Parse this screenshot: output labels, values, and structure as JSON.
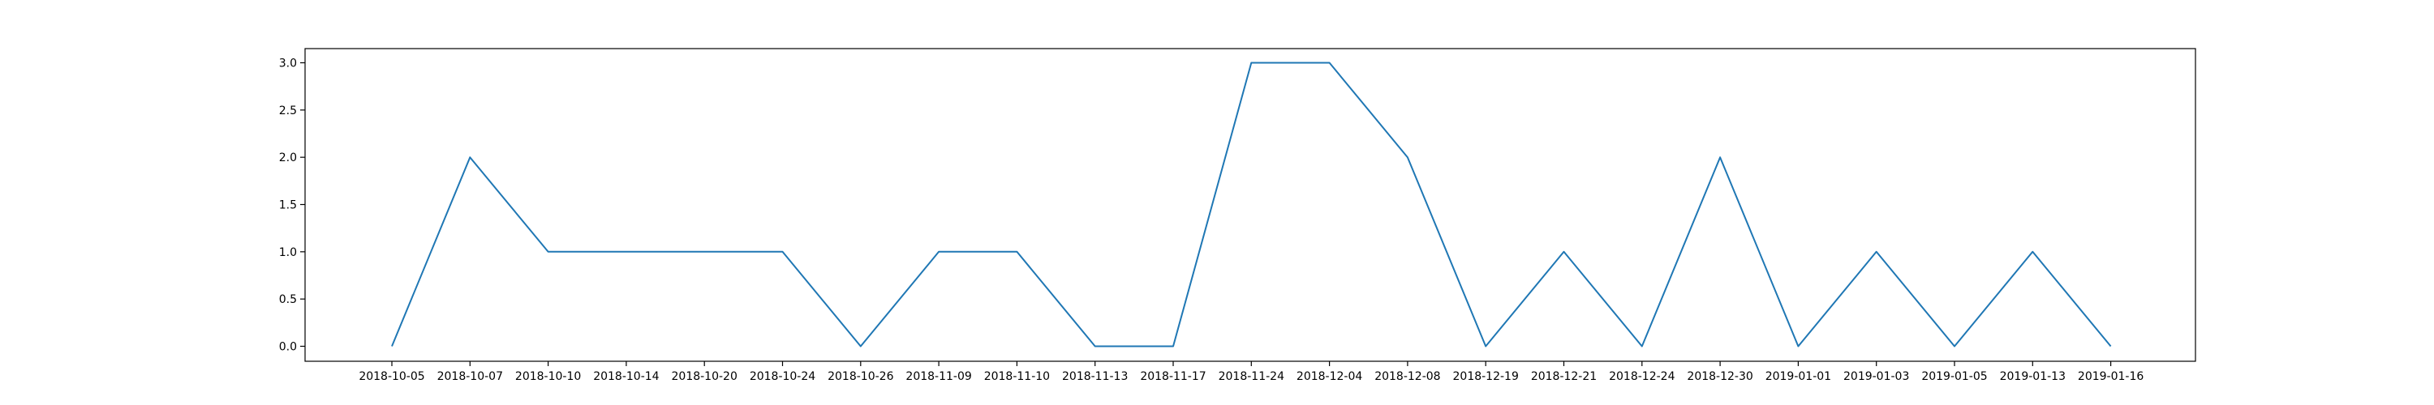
{
  "chart_data": {
    "type": "line",
    "title": "",
    "xlabel": "",
    "ylabel": "",
    "categories": [
      "2018-10-05",
      "2018-10-07",
      "2018-10-10",
      "2018-10-14",
      "2018-10-20",
      "2018-10-24",
      "2018-10-26",
      "2018-11-09",
      "2018-11-10",
      "2018-11-13",
      "2018-11-17",
      "2018-11-24",
      "2018-12-04",
      "2018-12-08",
      "2018-12-19",
      "2018-12-21",
      "2018-12-24",
      "2018-12-30",
      "2019-01-01",
      "2019-01-03",
      "2019-01-05",
      "2019-01-13",
      "2019-01-16"
    ],
    "series": [
      {
        "color": "#1f77b4",
        "values": [
          0,
          2,
          1,
          1,
          1,
          1,
          0,
          1,
          1,
          0,
          0,
          3,
          3,
          2,
          0,
          1,
          0,
          2,
          0,
          1,
          0,
          1,
          0
        ]
      }
    ],
    "yticks": [
      "0.0",
      "0.5",
      "1.0",
      "1.5",
      "2.0",
      "2.5",
      "3.0"
    ],
    "ylim": [
      -0.15,
      3.15
    ],
    "grid": false,
    "legend": "none"
  }
}
